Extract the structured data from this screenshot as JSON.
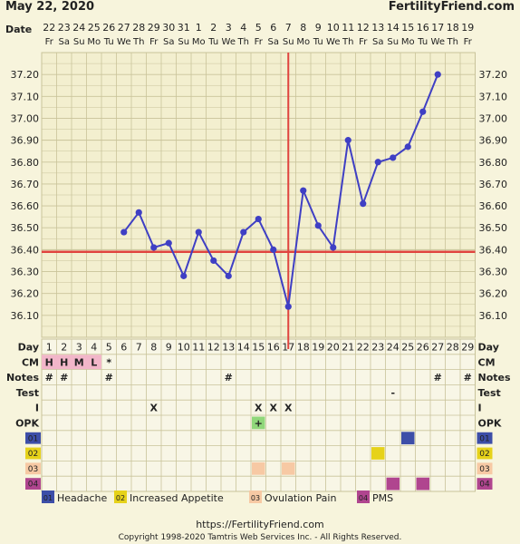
{
  "header": {
    "date": "May 22, 2020",
    "site": "FertilityFriend.com"
  },
  "row_labels": {
    "date": "Date",
    "day": "Day",
    "cm": "CM",
    "notes": "Notes",
    "test": "Test",
    "intercourse": "I",
    "opk": "OPK",
    "sym1": "01",
    "sym2": "02",
    "sym3": "03",
    "sym4": "04"
  },
  "footer": {
    "url": "https://FertilityFriend.com",
    "copyright": "Copyright 1998-2020 Tamtris Web Services Inc. - All Rights Reserved."
  },
  "legend": [
    {
      "code": "01",
      "label": "Headache",
      "color": "#3d4ea8"
    },
    {
      "code": "02",
      "label": "Increased Appetite",
      "color": "#e6d21a"
    },
    {
      "code": "03",
      "label": "Ovulation Pain",
      "color": "#f7c9a4"
    },
    {
      "code": "04",
      "label": "PMS",
      "color": "#b0458f"
    }
  ],
  "colors": {
    "background": "#f7f4dc",
    "grid": "#c9c39a",
    "temp_line": "#3f3fc4",
    "coverline": "#e0443f",
    "ovulation_line": "#e0443f",
    "cm_box": "#f2b6c9",
    "opk_box": "#90d77a"
  },
  "chart_data": {
    "type": "line",
    "title": "",
    "xlabel": "Day",
    "ylabel": "",
    "ylim": [
      36.0,
      37.3
    ],
    "y_ticks": [
      "37.20",
      "37.10",
      "37.00",
      "36.90",
      "36.80",
      "36.70",
      "36.60",
      "36.50",
      "36.40",
      "36.30",
      "36.20",
      "36.10"
    ],
    "dates": [
      "22",
      "23",
      "24",
      "25",
      "26",
      "27",
      "28",
      "29",
      "30",
      "31",
      "1",
      "2",
      "3",
      "4",
      "5",
      "6",
      "7",
      "8",
      "9",
      "10",
      "11",
      "12",
      "13",
      "14",
      "15",
      "16",
      "17",
      "18",
      "19"
    ],
    "weekdays": [
      "Fr",
      "Sa",
      "Su",
      "Mo",
      "Tu",
      "We",
      "Th",
      "Fr",
      "Sa",
      "Su",
      "Mo",
      "Tu",
      "We",
      "Th",
      "Fr",
      "Sa",
      "Su",
      "Mo",
      "Tu",
      "We",
      "Th",
      "Fr",
      "Sa",
      "Su",
      "Mo",
      "Tu",
      "We",
      "Th",
      "Fr"
    ],
    "days": [
      "1",
      "2",
      "3",
      "4",
      "5",
      "6",
      "7",
      "8",
      "9",
      "10",
      "11",
      "12",
      "13",
      "14",
      "15",
      "16",
      "17",
      "18",
      "19",
      "20",
      "21",
      "22",
      "23",
      "24",
      "25",
      "26",
      "27",
      "28",
      "29"
    ],
    "series": [
      {
        "x": [
          6,
          7,
          8,
          9,
          10,
          11,
          12,
          13,
          14,
          15,
          16,
          17,
          18,
          19,
          20,
          21,
          22,
          23,
          24,
          25,
          26,
          27
        ],
        "values": [
          36.48,
          36.57,
          36.41,
          36.43,
          36.28,
          36.48,
          36.35,
          36.28,
          36.48,
          36.54,
          36.4,
          36.14,
          36.67,
          36.51,
          36.41,
          36.9,
          36.61,
          36.8,
          36.82,
          36.87,
          37.03,
          37.2
        ]
      }
    ],
    "coverline": 36.39,
    "ovulation_day": 17,
    "rows": {
      "cm": [
        "H",
        "H",
        "M",
        "L",
        "*",
        "",
        "",
        "",
        "",
        "",
        "",
        "",
        "",
        "",
        "",
        "",
        "",
        "",
        "",
        "",
        "",
        "",
        "",
        "",
        "",
        "",
        "",
        "",
        ""
      ],
      "notes": [
        "#",
        "#",
        "",
        "",
        "#",
        "",
        "",
        "",
        "",
        "",
        "",
        "",
        "#",
        "",
        "",
        "",
        "",
        "",
        "",
        "",
        "",
        "",
        "",
        "",
        "",
        "",
        "#",
        "",
        "#"
      ],
      "test": [
        "",
        "",
        "",
        "",
        "",
        "",
        "",
        "",
        "",
        "",
        "",
        "",
        "",
        "",
        "",
        "",
        "",
        "",
        "",
        "",
        "",
        "",
        "",
        "-",
        "",
        "",
        "",
        "",
        ""
      ],
      "intercourse": [
        "",
        "",
        "",
        "",
        "",
        "",
        "",
        "X",
        "",
        "",
        "",
        "",
        "",
        "",
        "X",
        "X",
        "X",
        "",
        "",
        "",
        "",
        "",
        "",
        "",
        "",
        "",
        "",
        "",
        ""
      ],
      "opk": [
        "",
        "",
        "",
        "",
        "",
        "",
        "",
        "",
        "",
        "",
        "",
        "",
        "",
        "",
        "+",
        "",
        "",
        "",
        "",
        "",
        "",
        "",
        "",
        "",
        "",
        "",
        "",
        "",
        ""
      ],
      "sym1": [
        25
      ],
      "sym2": [
        23
      ],
      "sym3": [
        15,
        17
      ],
      "sym4": [
        24,
        26
      ]
    }
  }
}
